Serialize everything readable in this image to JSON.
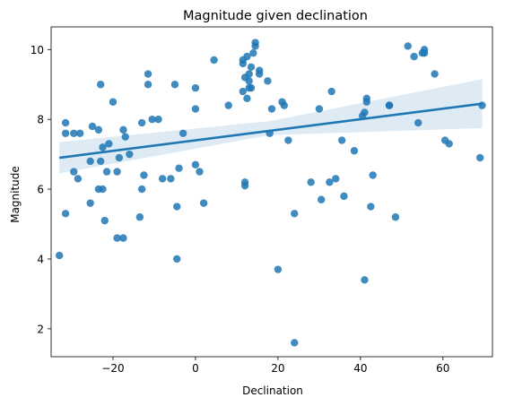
{
  "chart_data": {
    "type": "scatter",
    "title": "Magnitude given declination",
    "xlabel": "Declination",
    "ylabel": "Magnitude",
    "xlim": [
      -35,
      72
    ],
    "ylim": [
      1.2,
      10.65
    ],
    "xticks": [
      -20,
      0,
      20,
      40,
      60
    ],
    "yticks": [
      2,
      4,
      6,
      8,
      10
    ],
    "xtick_labels": [
      "−20",
      "0",
      "20",
      "40",
      "60"
    ],
    "ytick_labels": [
      "2",
      "4",
      "6",
      "8",
      "10"
    ],
    "grid": false,
    "point_color": "#1f77b4",
    "regression": {
      "x": [
        -33,
        69.5
      ],
      "y": [
        6.9,
        8.45
      ],
      "ci_lower": [
        6.45,
        7.75
      ],
      "ci_upper": [
        7.35,
        9.15
      ],
      "ci_mid": {
        "x": 18,
        "lower": 7.55,
        "upper": 7.95
      }
    },
    "points": [
      [
        -33,
        4.1
      ],
      [
        -31.5,
        7.9
      ],
      [
        -31.5,
        7.6
      ],
      [
        -31.5,
        5.3
      ],
      [
        -29.5,
        6.5
      ],
      [
        -29.5,
        7.6
      ],
      [
        -28.5,
        6.3
      ],
      [
        -28,
        7.6
      ],
      [
        -25.5,
        6.8
      ],
      [
        -25.5,
        5.6
      ],
      [
        -25,
        7.8
      ],
      [
        -23.5,
        7.7
      ],
      [
        -23.5,
        6.0
      ],
      [
        -23,
        9.0
      ],
      [
        -23,
        6.8
      ],
      [
        -22.5,
        7.2
      ],
      [
        -22.5,
        6.0
      ],
      [
        -22,
        5.1
      ],
      [
        -21.5,
        6.5
      ],
      [
        -21,
        7.3
      ],
      [
        -20,
        8.5
      ],
      [
        -19,
        4.6
      ],
      [
        -19,
        6.5
      ],
      [
        -18.5,
        6.9
      ],
      [
        -17.5,
        7.7
      ],
      [
        -17.5,
        4.6
      ],
      [
        -17,
        7.5
      ],
      [
        -16,
        7.0
      ],
      [
        -13.5,
        5.2
      ],
      [
        -13,
        6.0
      ],
      [
        -13,
        7.9
      ],
      [
        -12.5,
        6.4
      ],
      [
        -11.5,
        9.3
      ],
      [
        -11.5,
        9.0
      ],
      [
        -10.5,
        8.0
      ],
      [
        -9,
        8.0
      ],
      [
        -8,
        6.3
      ],
      [
        -6,
        6.3
      ],
      [
        -5,
        9.0
      ],
      [
        -4.5,
        4.0
      ],
      [
        -4.5,
        5.5
      ],
      [
        -4,
        6.6
      ],
      [
        -3,
        7.6
      ],
      [
        0,
        8.9
      ],
      [
        0,
        8.3
      ],
      [
        0,
        6.7
      ],
      [
        1,
        6.5
      ],
      [
        2,
        5.6
      ],
      [
        4.5,
        9.7
      ],
      [
        8,
        8.4
      ],
      [
        11.5,
        8.8
      ],
      [
        11.5,
        9.7
      ],
      [
        11.5,
        9.6
      ],
      [
        12,
        6.2
      ],
      [
        12,
        6.1
      ],
      [
        12,
        9.2
      ],
      [
        12.5,
        8.6
      ],
      [
        12.5,
        9.8
      ],
      [
        13,
        9.3
      ],
      [
        13,
        9.1
      ],
      [
        13,
        8.9
      ],
      [
        13.5,
        8.9
      ],
      [
        13.5,
        9.5
      ],
      [
        14,
        9.9
      ],
      [
        14.5,
        10.2
      ],
      [
        14.5,
        10.1
      ],
      [
        15.5,
        9.4
      ],
      [
        15.5,
        9.3
      ],
      [
        17.5,
        9.1
      ],
      [
        18,
        7.6
      ],
      [
        18.5,
        8.3
      ],
      [
        20,
        3.7
      ],
      [
        21,
        8.5
      ],
      [
        21.5,
        8.4
      ],
      [
        22.5,
        7.4
      ],
      [
        24,
        1.6
      ],
      [
        24,
        5.3
      ],
      [
        28,
        6.2
      ],
      [
        30,
        8.3
      ],
      [
        30.5,
        5.7
      ],
      [
        32.5,
        6.2
      ],
      [
        33,
        8.8
      ],
      [
        34,
        6.3
      ],
      [
        35.5,
        7.4
      ],
      [
        36,
        5.8
      ],
      [
        38.5,
        7.1
      ],
      [
        40.5,
        8.1
      ],
      [
        41,
        3.4
      ],
      [
        41,
        8.2
      ],
      [
        41.5,
        8.5
      ],
      [
        41.5,
        8.6
      ],
      [
        42.5,
        5.5
      ],
      [
        43,
        6.4
      ],
      [
        47,
        8.4
      ],
      [
        47,
        8.4
      ],
      [
        48.5,
        5.2
      ],
      [
        51.5,
        10.1
      ],
      [
        53,
        9.8
      ],
      [
        54,
        7.9
      ],
      [
        55,
        9.9
      ],
      [
        55.5,
        9.9
      ],
      [
        55.5,
        10.0
      ],
      [
        58,
        9.3
      ],
      [
        60.5,
        7.4
      ],
      [
        61.5,
        7.3
      ],
      [
        69,
        6.9
      ],
      [
        69.5,
        8.4
      ]
    ]
  }
}
